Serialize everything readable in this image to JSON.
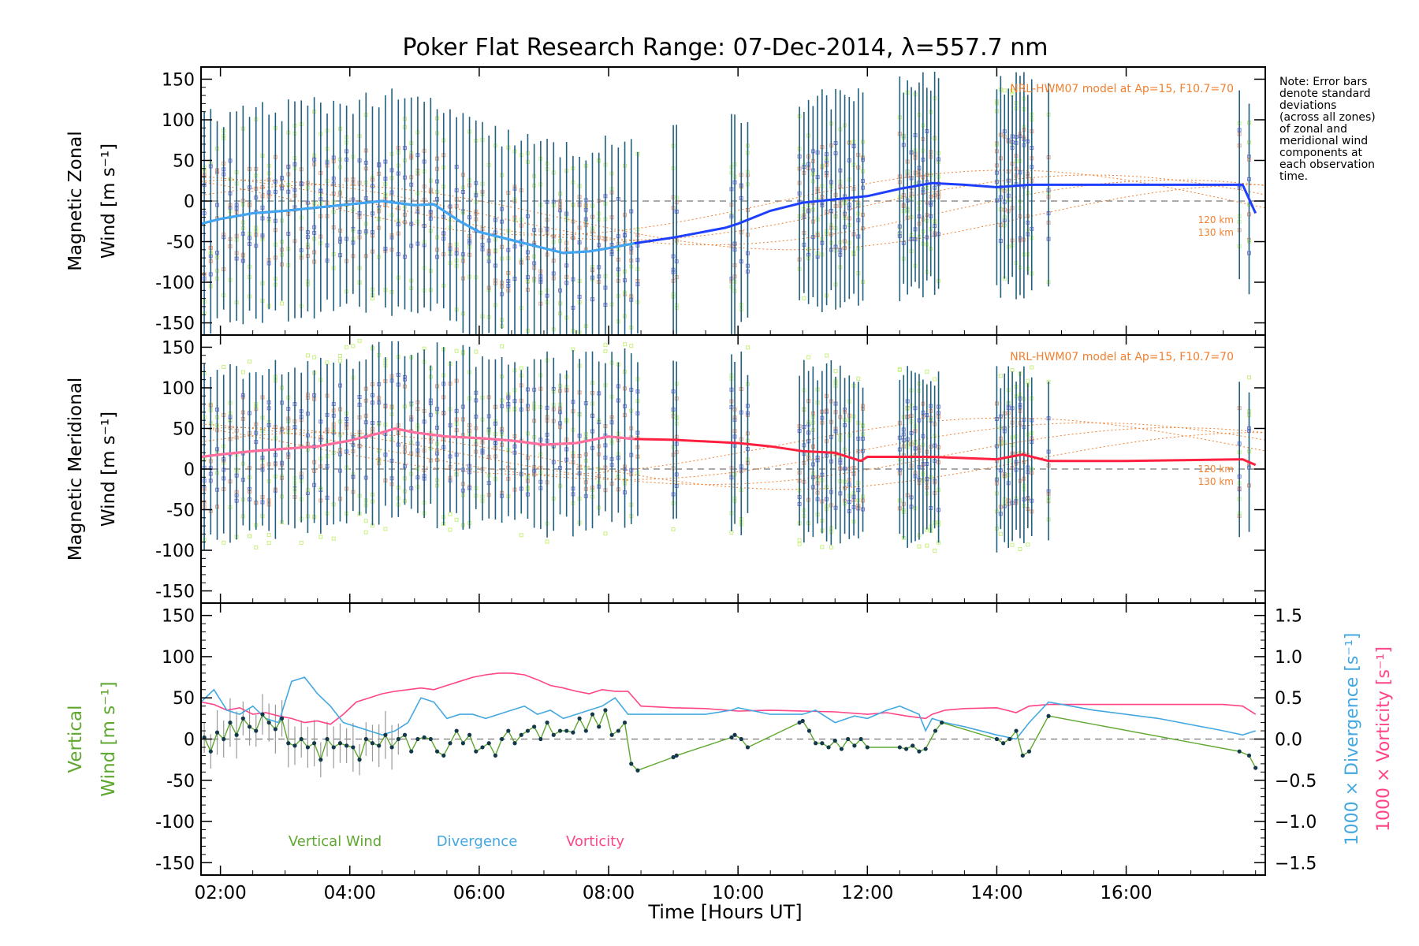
{
  "title": "Poker Flat Research Range: 07-Dec-2014, λ=557.7 nm",
  "note_lines": [
    "Note: Error bars",
    "denote standard",
    "deviations",
    "(across all zones)",
    "of zonal and",
    "meridional wind",
    "components at",
    "each observation",
    "time."
  ],
  "colors": {
    "zonal": "#1f3fff",
    "zonal_highlight": "#41a7f0",
    "meridional": "#ff2040",
    "meridional_highlight": "#ff70a0",
    "vertical": "#5fa830",
    "divergence": "#44a8e0",
    "vorticity": "#ff4488",
    "errorbar": "#1f5f7f",
    "model": "#f08030",
    "scatter_green": "#c8f080",
    "scatter_blue": "#8080e0",
    "scatter_orange": "#f0a080",
    "zero_line": "#777777"
  },
  "x_axis": {
    "label": "Time [Hours UT]",
    "ticks": [
      "02:00",
      "04:00",
      "06:00",
      "08:00",
      "10:00",
      "12:00",
      "14:00",
      "16:00"
    ],
    "tick_hours": [
      2,
      4,
      6,
      8,
      10,
      12,
      14,
      16
    ],
    "range": [
      1.7,
      18.15
    ]
  },
  "chart_data": [
    {
      "type": "line",
      "panel": "zonal",
      "ylabel_line1": "Magnetic Zonal",
      "ylabel_line2": "Wind [m s⁻¹]",
      "ylim": [
        -165,
        165
      ],
      "yticks": [
        150,
        100,
        50,
        0,
        -50,
        -100,
        -150
      ],
      "model_label": "NRL-HWM07 model at Ap=15, F10.7=70",
      "model_height_labels": [
        "120 km",
        "130 km"
      ],
      "series": [
        {
          "x": [
            1.7,
            2.0,
            2.5,
            3.0,
            3.5,
            4.0,
            4.5,
            5.0,
            5.3,
            5.7,
            6.0,
            6.5,
            7.0,
            7.3,
            7.7,
            8.0,
            8.4,
            9.0,
            9.8,
            10.0,
            10.5,
            11.0,
            11.5,
            12.0,
            12.5,
            13.0,
            13.5,
            14.0,
            14.5,
            14.8,
            17.8,
            18.0
          ],
          "y": [
            -28,
            -22,
            -15,
            -12,
            -8,
            -4,
            0,
            -5,
            -4,
            -25,
            -38,
            -48,
            -58,
            -64,
            -62,
            -58,
            -52,
            -45,
            -33,
            -28,
            -12,
            -2,
            2,
            6,
            15,
            22,
            20,
            17,
            20,
            20,
            20,
            -15
          ]
        }
      ]
    },
    {
      "type": "line",
      "panel": "meridional",
      "ylabel_line1": "Magnetic Meridional",
      "ylabel_line2": "Wind [m s⁻¹]",
      "ylim": [
        -165,
        165
      ],
      "yticks": [
        150,
        100,
        50,
        0,
        -50,
        -100,
        -150
      ],
      "model_label": "NRL-HWM07 model at Ap=15, F10.7=70",
      "model_height_labels": [
        "120 km",
        "130 km"
      ],
      "series": [
        {
          "x": [
            1.7,
            2.0,
            2.5,
            3.0,
            3.5,
            4.0,
            4.5,
            4.7,
            5.0,
            5.5,
            6.0,
            6.5,
            7.0,
            7.5,
            8.0,
            8.4,
            9.0,
            10.0,
            10.5,
            11.0,
            11.5,
            11.9,
            12.0,
            12.5,
            13.0,
            14.0,
            14.4,
            14.8,
            16.0,
            17.8,
            18.0
          ],
          "y": [
            15,
            18,
            22,
            25,
            28,
            35,
            45,
            50,
            45,
            40,
            38,
            35,
            30,
            32,
            40,
            37,
            36,
            32,
            28,
            22,
            20,
            10,
            15,
            15,
            15,
            12,
            18,
            10,
            10,
            12,
            5
          ]
        }
      ]
    },
    {
      "type": "line",
      "panel": "vertical",
      "ylabel_line1": "Vertical",
      "ylabel_line2": "Wind [m s⁻¹]",
      "ylim": [
        -165,
        165
      ],
      "yticks": [
        150,
        100,
        50,
        0,
        -50,
        -100,
        -150
      ],
      "y2label_div": "1000 × Divergence [s⁻¹]",
      "y2label_vort": "1000 × Vorticity [s⁻¹]",
      "y2lim": [
        -1.65,
        1.65
      ],
      "y2ticks": [
        1.5,
        1.0,
        0.5,
        0.0,
        -0.5,
        -1.0,
        -1.5
      ],
      "y2tick_labels": [
        "1.5",
        "1.0",
        "0.5",
        "0.0",
        "−0.5",
        "−1.0",
        "−1.5"
      ],
      "legend": [
        "Vertical Wind",
        "Divergence",
        "Vorticity"
      ],
      "series": [
        {
          "name": "Vertical Wind",
          "axis": "left",
          "x": [
            1.75,
            1.85,
            1.95,
            2.05,
            2.15,
            2.25,
            2.35,
            2.45,
            2.55,
            2.65,
            2.75,
            2.85,
            2.95,
            3.05,
            3.15,
            3.25,
            3.35,
            3.45,
            3.55,
            3.65,
            3.75,
            3.85,
            3.95,
            4.05,
            4.15,
            4.25,
            4.35,
            4.45,
            4.55,
            4.65,
            4.75,
            4.85,
            4.95,
            5.05,
            5.15,
            5.25,
            5.35,
            5.45,
            5.55,
            5.65,
            5.75,
            5.85,
            5.95,
            6.05,
            6.15,
            6.25,
            6.35,
            6.45,
            6.55,
            6.65,
            6.75,
            6.85,
            6.95,
            7.05,
            7.15,
            7.25,
            7.35,
            7.45,
            7.55,
            7.65,
            7.75,
            7.85,
            7.95,
            8.05,
            8.15,
            8.25,
            8.35,
            8.45,
            9.0,
            9.05,
            9.9,
            9.95,
            10.05,
            10.15,
            10.95,
            11.0,
            11.1,
            11.2,
            11.3,
            11.4,
            11.5,
            11.6,
            11.7,
            11.8,
            11.9,
            12.0,
            12.5,
            12.6,
            12.7,
            12.8,
            12.9,
            13.05,
            13.15,
            14.0,
            14.1,
            14.2,
            14.3,
            14.4,
            14.5,
            14.8,
            17.75,
            17.9,
            18.0
          ],
          "y": [
            2,
            -15,
            8,
            0,
            20,
            5,
            25,
            15,
            10,
            30,
            20,
            12,
            25,
            -5,
            -8,
            0,
            -10,
            -5,
            -25,
            0,
            -10,
            -5,
            -8,
            -10,
            -25,
            0,
            -5,
            -8,
            5,
            -10,
            0,
            5,
            -15,
            0,
            2,
            0,
            -15,
            -20,
            -5,
            10,
            -5,
            5,
            -15,
            -10,
            -5,
            -20,
            0,
            10,
            -5,
            5,
            10,
            15,
            0,
            20,
            5,
            10,
            10,
            8,
            25,
            10,
            30,
            15,
            35,
            5,
            10,
            20,
            -30,
            -38,
            -22,
            -20,
            2,
            5,
            0,
            -10,
            20,
            22,
            10,
            -5,
            -5,
            -10,
            -2,
            -12,
            0,
            -8,
            0,
            -10,
            -10,
            -12,
            -8,
            -15,
            -12,
            10,
            20,
            0,
            -5,
            0,
            10,
            -20,
            -15,
            28,
            -15,
            -20,
            -35
          ]
        },
        {
          "name": "Divergence",
          "axis": "right",
          "x": [
            1.7,
            1.9,
            2.1,
            2.3,
            2.5,
            2.7,
            2.9,
            3.1,
            3.3,
            3.5,
            3.7,
            3.9,
            4.1,
            4.3,
            4.5,
            4.7,
            4.9,
            5.1,
            5.3,
            5.5,
            5.7,
            5.9,
            6.1,
            6.3,
            6.5,
            6.7,
            6.9,
            7.1,
            7.3,
            7.5,
            7.7,
            7.9,
            8.1,
            8.3,
            8.5,
            9.0,
            9.5,
            9.9,
            10.0,
            10.5,
            11.0,
            11.2,
            11.5,
            11.8,
            12.0,
            12.3,
            12.5,
            12.8,
            12.9,
            13.0,
            13.2,
            13.5,
            14.0,
            14.3,
            14.5,
            14.8,
            15.5,
            16.5,
            17.5,
            17.8,
            18.0
          ],
          "y": [
            0.45,
            0.6,
            0.35,
            0.3,
            0.4,
            0.25,
            0.2,
            0.7,
            0.75,
            0.55,
            0.4,
            0.2,
            0.15,
            0.1,
            0.05,
            0.1,
            0.2,
            0.5,
            0.45,
            0.25,
            0.3,
            0.3,
            0.25,
            0.3,
            0.35,
            0.4,
            0.3,
            0.35,
            0.25,
            0.3,
            0.35,
            0.4,
            0.5,
            0.3,
            0.3,
            0.3,
            0.3,
            0.35,
            0.38,
            0.3,
            0.3,
            0.35,
            0.2,
            0.28,
            0.25,
            0.35,
            0.4,
            0.3,
            0.1,
            0.25,
            0.2,
            0.15,
            0.05,
            0.0,
            0.2,
            0.45,
            0.35,
            0.25,
            0.1,
            0.05,
            0.1
          ]
        },
        {
          "name": "Vorticity",
          "axis": "right",
          "x": [
            1.7,
            1.9,
            2.1,
            2.3,
            2.5,
            2.7,
            2.9,
            3.1,
            3.3,
            3.5,
            3.7,
            3.9,
            4.1,
            4.3,
            4.5,
            4.7,
            4.9,
            5.1,
            5.3,
            5.5,
            5.7,
            5.9,
            6.1,
            6.3,
            6.5,
            6.7,
            6.9,
            7.1,
            7.3,
            7.5,
            7.7,
            7.9,
            8.1,
            8.3,
            8.5,
            9.0,
            9.5,
            10.0,
            10.5,
            11.0,
            11.5,
            12.0,
            12.3,
            12.6,
            12.9,
            13.0,
            13.2,
            13.5,
            14.0,
            14.3,
            14.5,
            14.8,
            15.5,
            16.5,
            17.5,
            17.8,
            18.0
          ],
          "y": [
            0.45,
            0.42,
            0.35,
            0.38,
            0.3,
            0.32,
            0.28,
            0.25,
            0.2,
            0.22,
            0.18,
            0.3,
            0.45,
            0.5,
            0.55,
            0.58,
            0.6,
            0.62,
            0.6,
            0.65,
            0.7,
            0.75,
            0.78,
            0.8,
            0.8,
            0.78,
            0.72,
            0.65,
            0.62,
            0.58,
            0.55,
            0.6,
            0.58,
            0.58,
            0.4,
            0.38,
            0.37,
            0.34,
            0.35,
            0.34,
            0.33,
            0.3,
            0.32,
            0.28,
            0.25,
            0.3,
            0.35,
            0.37,
            0.38,
            0.32,
            0.4,
            0.42,
            0.42,
            0.42,
            0.42,
            0.4,
            0.3
          ]
        }
      ]
    }
  ]
}
